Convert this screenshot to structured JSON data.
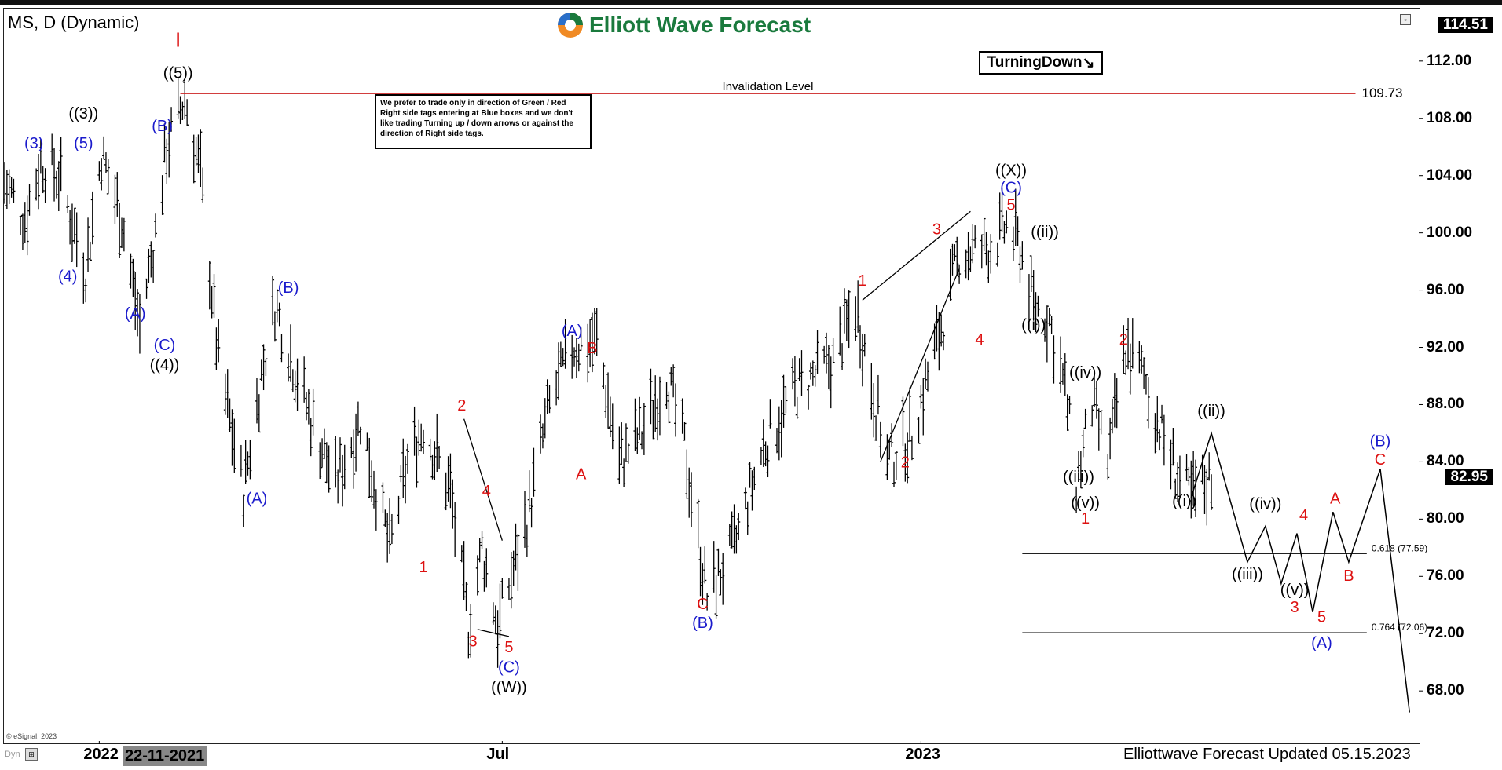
{
  "header": {
    "symbol_title": "MS, D (Dynamic)",
    "logo_text": "Elliott Wave Forecast",
    "turning_label": "TurningDown",
    "turning_arrow": "↘",
    "note_text": "We prefer to trade only in direction of Green / Red Right side tags entering at Blue boxes and we don't like trading Turning up / down arrows or against the direction of Right side tags."
  },
  "footer": {
    "copyright": "© eSignal, 2023",
    "dyn_label": "Dyn",
    "date_badge": "22-11-2021",
    "updated_text": "Elliottwave Forecast Updated 05.15.2023"
  },
  "colors": {
    "blue": "#1a1acc",
    "red": "#dd1111",
    "black": "#000000",
    "invalid_line": "#cc2222"
  },
  "chart_data": {
    "type": "ohlc-bar",
    "symbol": "MS",
    "timeframe": "D",
    "ylim": [
      64.5,
      115.5
    ],
    "y_ticks": [
      68,
      72,
      76,
      80,
      84,
      88,
      92,
      96,
      100,
      104,
      108,
      112
    ],
    "y_tick_labels": [
      "68.00",
      "72.00",
      "76.00",
      "80.00",
      "84.00",
      "88.00",
      "92.00",
      "96.00",
      "100.00",
      "104.00",
      "108.00",
      "112.00"
    ],
    "x_tick_labels": [
      {
        "label": "2022",
        "x": "2022-01-03"
      },
      {
        "label": "Jul",
        "x": "2022-07-01"
      },
      {
        "label": "2023",
        "x": "2023-01-03"
      }
    ],
    "x_range": [
      "2021-11-22",
      "2023-08-10"
    ],
    "current_price": 114.51,
    "last_price": 82.95,
    "invalidation": {
      "label": "Invalidation Level",
      "value": 109.73,
      "value_label": "109.73",
      "from": "2022-02-08",
      "to": "2023-07-15"
    },
    "fib_levels": [
      {
        "label": "0.618 (77.59)",
        "value": 77.59,
        "from": "2023-02-17",
        "to": "2023-07-20"
      },
      {
        "label": "0.764 (72.06)",
        "value": 72.06,
        "from": "2023-02-17",
        "to": "2023-07-20"
      }
    ],
    "ohlc_path": [
      [
        "2021-11-22",
        103.5
      ],
      [
        "2021-12-01",
        101
      ],
      [
        "2021-12-08",
        105
      ],
      [
        "2021-12-16",
        104
      ],
      [
        "2021-12-28",
        97.5
      ],
      [
        "2022-01-04",
        105.5
      ],
      [
        "2022-01-13",
        101
      ],
      [
        "2022-01-21",
        93.5
      ],
      [
        "2022-01-28",
        100
      ],
      [
        "2022-02-02",
        106
      ],
      [
        "2022-02-10",
        109.5
      ],
      [
        "2022-02-17",
        104
      ],
      [
        "2022-02-25",
        91
      ],
      [
        "2022-03-08",
        82
      ],
      [
        "2022-03-16",
        90
      ],
      [
        "2022-03-22",
        95
      ],
      [
        "2022-03-30",
        91
      ],
      [
        "2022-04-07",
        87
      ],
      [
        "2022-04-18",
        82.5
      ],
      [
        "2022-04-29",
        87
      ],
      [
        "2022-05-12",
        78
      ],
      [
        "2022-05-20",
        84
      ],
      [
        "2022-05-27",
        86.5
      ],
      [
        "2022-06-08",
        82
      ],
      [
        "2022-06-16",
        72.5
      ],
      [
        "2022-06-22",
        78
      ],
      [
        "2022-06-29",
        72.5
      ],
      [
        "2022-07-12",
        80
      ],
      [
        "2022-07-22",
        88
      ],
      [
        "2022-08-01",
        92
      ],
      [
        "2022-08-12",
        92.5
      ],
      [
        "2022-08-22",
        84
      ],
      [
        "2022-09-01",
        86
      ],
      [
        "2022-09-12",
        90
      ],
      [
        "2022-09-20",
        85
      ],
      [
        "2022-09-30",
        74.5
      ],
      [
        "2022-10-12",
        78
      ],
      [
        "2022-10-25",
        85
      ],
      [
        "2022-11-08",
        89
      ],
      [
        "2022-11-25",
        91
      ],
      [
        "2022-12-05",
        95
      ],
      [
        "2022-12-19",
        84
      ],
      [
        "2022-12-30",
        86
      ],
      [
        "2023-01-13",
        94
      ],
      [
        "2023-01-20",
        98.5
      ],
      [
        "2023-02-03",
        99
      ],
      [
        "2023-02-10",
        100.5
      ],
      [
        "2023-02-16",
        99
      ],
      [
        "2023-02-22",
        95
      ],
      [
        "2023-03-01",
        94
      ],
      [
        "2023-03-08",
        89
      ],
      [
        "2023-03-13",
        82.5
      ],
      [
        "2023-03-20",
        88
      ],
      [
        "2023-03-27",
        84
      ],
      [
        "2023-04-04",
        92
      ],
      [
        "2023-04-12",
        90
      ],
      [
        "2023-04-20",
        86
      ],
      [
        "2023-04-27",
        83
      ],
      [
        "2023-05-03",
        81.5
      ],
      [
        "2023-05-12",
        82.95
      ]
    ],
    "projection_path": [
      [
        "2023-05-03",
        81.5
      ],
      [
        "2023-05-12",
        86
      ],
      [
        "2023-05-28",
        77
      ],
      [
        "2023-06-05",
        79.5
      ],
      [
        "2023-06-12",
        75.5
      ],
      [
        "2023-06-19",
        79
      ],
      [
        "2023-06-26",
        73.5
      ],
      [
        "2023-07-05",
        80.5
      ],
      [
        "2023-07-12",
        77
      ],
      [
        "2023-07-26",
        83.5
      ],
      [
        "2023-08-08",
        66.5
      ]
    ],
    "trend_lines": [
      {
        "from": [
          "2022-06-14",
          87.0
        ],
        "to": [
          "2022-07-01",
          78.5
        ]
      },
      {
        "from": [
          "2022-06-20",
          72.3
        ],
        "to": [
          "2022-07-04",
          71.8
        ]
      },
      {
        "from": [
          "2022-12-08",
          95.3
        ],
        "to": [
          "2023-01-25",
          101.5
        ]
      },
      {
        "from": [
          "2022-12-16",
          84.0
        ],
        "to": [
          "2023-01-20",
          97.5
        ]
      }
    ],
    "wave_labels": [
      {
        "text": "I",
        "x": "2022-02-07",
        "y": 113.0,
        "color": "red",
        "size": 26
      },
      {
        "text": "((5))",
        "x": "2022-02-07",
        "y": 110.8,
        "color": "black"
      },
      {
        "text": "((3))",
        "x": "2021-12-27",
        "y": 108.0,
        "color": "black"
      },
      {
        "text": "(3)",
        "x": "2021-12-05",
        "y": 105.9,
        "color": "blue"
      },
      {
        "text": "(5)",
        "x": "2021-12-27",
        "y": 105.9,
        "color": "blue"
      },
      {
        "text": "(4)",
        "x": "2021-12-20",
        "y": 96.6,
        "color": "blue"
      },
      {
        "text": "(A)",
        "x": "2022-01-19",
        "y": 94.0,
        "color": "blue"
      },
      {
        "text": "(B)",
        "x": "2022-01-31",
        "y": 107.1,
        "color": "blue"
      },
      {
        "text": "(C)",
        "x": "2022-02-01",
        "y": 91.8,
        "color": "blue"
      },
      {
        "text": "((4))",
        "x": "2022-02-01",
        "y": 90.4,
        "color": "black"
      },
      {
        "text": "(B)",
        "x": "2022-03-28",
        "y": 95.8,
        "color": "blue"
      },
      {
        "text": "(A)",
        "x": "2022-03-14",
        "y": 81.1,
        "color": "blue"
      },
      {
        "text": "2",
        "x": "2022-06-13",
        "y": 87.6,
        "color": "red"
      },
      {
        "text": "1",
        "x": "2022-05-27",
        "y": 76.3,
        "color": "red"
      },
      {
        "text": "4",
        "x": "2022-06-24",
        "y": 81.6,
        "color": "red"
      },
      {
        "text": "3",
        "x": "2022-06-18",
        "y": 71.1,
        "color": "red"
      },
      {
        "text": "5",
        "x": "2022-07-04",
        "y": 70.7,
        "color": "red"
      },
      {
        "text": "(C)",
        "x": "2022-07-04",
        "y": 69.3,
        "color": "blue"
      },
      {
        "text": "((W))",
        "x": "2022-07-04",
        "y": 67.9,
        "color": "black"
      },
      {
        "text": "(A)",
        "x": "2022-08-01",
        "y": 92.8,
        "color": "blue"
      },
      {
        "text": "B",
        "x": "2022-08-10",
        "y": 91.6,
        "color": "red"
      },
      {
        "text": "A",
        "x": "2022-08-05",
        "y": 82.8,
        "color": "red"
      },
      {
        "text": "C",
        "x": "2022-09-28",
        "y": 73.7,
        "color": "red"
      },
      {
        "text": "(B)",
        "x": "2022-09-28",
        "y": 72.4,
        "color": "blue"
      },
      {
        "text": "1",
        "x": "2022-12-08",
        "y": 96.3,
        "color": "red"
      },
      {
        "text": "3",
        "x": "2023-01-10",
        "y": 99.9,
        "color": "red"
      },
      {
        "text": "2",
        "x": "2022-12-27",
        "y": 83.6,
        "color": "red"
      },
      {
        "text": "4",
        "x": "2023-01-29",
        "y": 92.2,
        "color": "red"
      },
      {
        "text": "((X))",
        "x": "2023-02-12",
        "y": 104.0,
        "color": "black"
      },
      {
        "text": "(C)",
        "x": "2023-02-12",
        "y": 102.8,
        "color": "blue"
      },
      {
        "text": "5",
        "x": "2023-02-12",
        "y": 101.6,
        "color": "red"
      },
      {
        "text": "((ii))",
        "x": "2023-02-27",
        "y": 99.7,
        "color": "black"
      },
      {
        "text": "((i))",
        "x": "2023-02-22",
        "y": 93.2,
        "color": "black"
      },
      {
        "text": "((iv))",
        "x": "2023-03-17",
        "y": 89.9,
        "color": "black"
      },
      {
        "text": "((iii))",
        "x": "2023-03-14",
        "y": 82.6,
        "color": "black"
      },
      {
        "text": "((v))",
        "x": "2023-03-17",
        "y": 80.8,
        "color": "black"
      },
      {
        "text": "1",
        "x": "2023-03-17",
        "y": 79.7,
        "color": "red"
      },
      {
        "text": "2",
        "x": "2023-04-03",
        "y": 92.2,
        "color": "red"
      },
      {
        "text": "((ii))",
        "x": "2023-05-12",
        "y": 87.2,
        "color": "black"
      },
      {
        "text": "((i))",
        "x": "2023-04-30",
        "y": 80.9,
        "color": "black"
      },
      {
        "text": "((iv))",
        "x": "2023-06-05",
        "y": 80.7,
        "color": "black"
      },
      {
        "text": "4",
        "x": "2023-06-22",
        "y": 79.9,
        "color": "red"
      },
      {
        "text": "((iii))",
        "x": "2023-05-28",
        "y": 75.8,
        "color": "black"
      },
      {
        "text": "((v))",
        "x": "2023-06-18",
        "y": 74.7,
        "color": "black"
      },
      {
        "text": "3",
        "x": "2023-06-18",
        "y": 73.5,
        "color": "red"
      },
      {
        "text": "5",
        "x": "2023-06-30",
        "y": 72.8,
        "color": "red"
      },
      {
        "text": "(A)",
        "x": "2023-06-30",
        "y": 71.0,
        "color": "blue"
      },
      {
        "text": "A",
        "x": "2023-07-06",
        "y": 81.1,
        "color": "red"
      },
      {
        "text": "B",
        "x": "2023-07-12",
        "y": 75.7,
        "color": "red"
      },
      {
        "text": "(B)",
        "x": "2023-07-26",
        "y": 85.1,
        "color": "blue"
      },
      {
        "text": "C",
        "x": "2023-07-26",
        "y": 83.8,
        "color": "red"
      }
    ]
  }
}
